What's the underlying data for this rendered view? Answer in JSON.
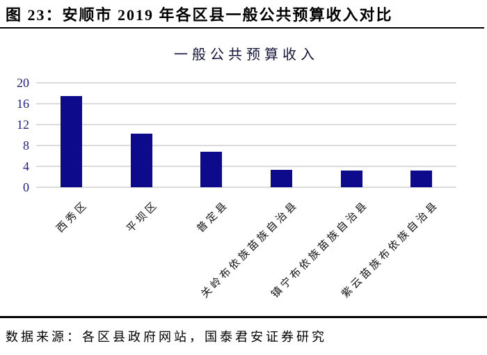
{
  "figure_header": {
    "label": "图 23：安顺市 2019 年各区县一般公共预算收入对比"
  },
  "chart_data": {
    "type": "bar",
    "title": "一般公共预算收入",
    "categories": [
      "西秀区",
      "平坝区",
      "普定县",
      "关岭布依族苗族自治县",
      "镇宁布依族苗族自治县",
      "紫云苗族布依族自治县"
    ],
    "values": [
      17.5,
      10.3,
      6.8,
      3.3,
      3.2,
      3.2
    ],
    "xlabel": "",
    "ylabel": "",
    "ylim": [
      0,
      20
    ],
    "yticks": [
      0,
      4,
      8,
      12,
      16,
      20
    ],
    "grid": true,
    "legend": "none",
    "bar_color": "#0d0a8c",
    "gridline_color": "#dcdcdc",
    "axis_label_color": "#1e1e7e"
  },
  "footer": {
    "source": "数据来源：各区县政府网站，国泰君安证券研究"
  }
}
